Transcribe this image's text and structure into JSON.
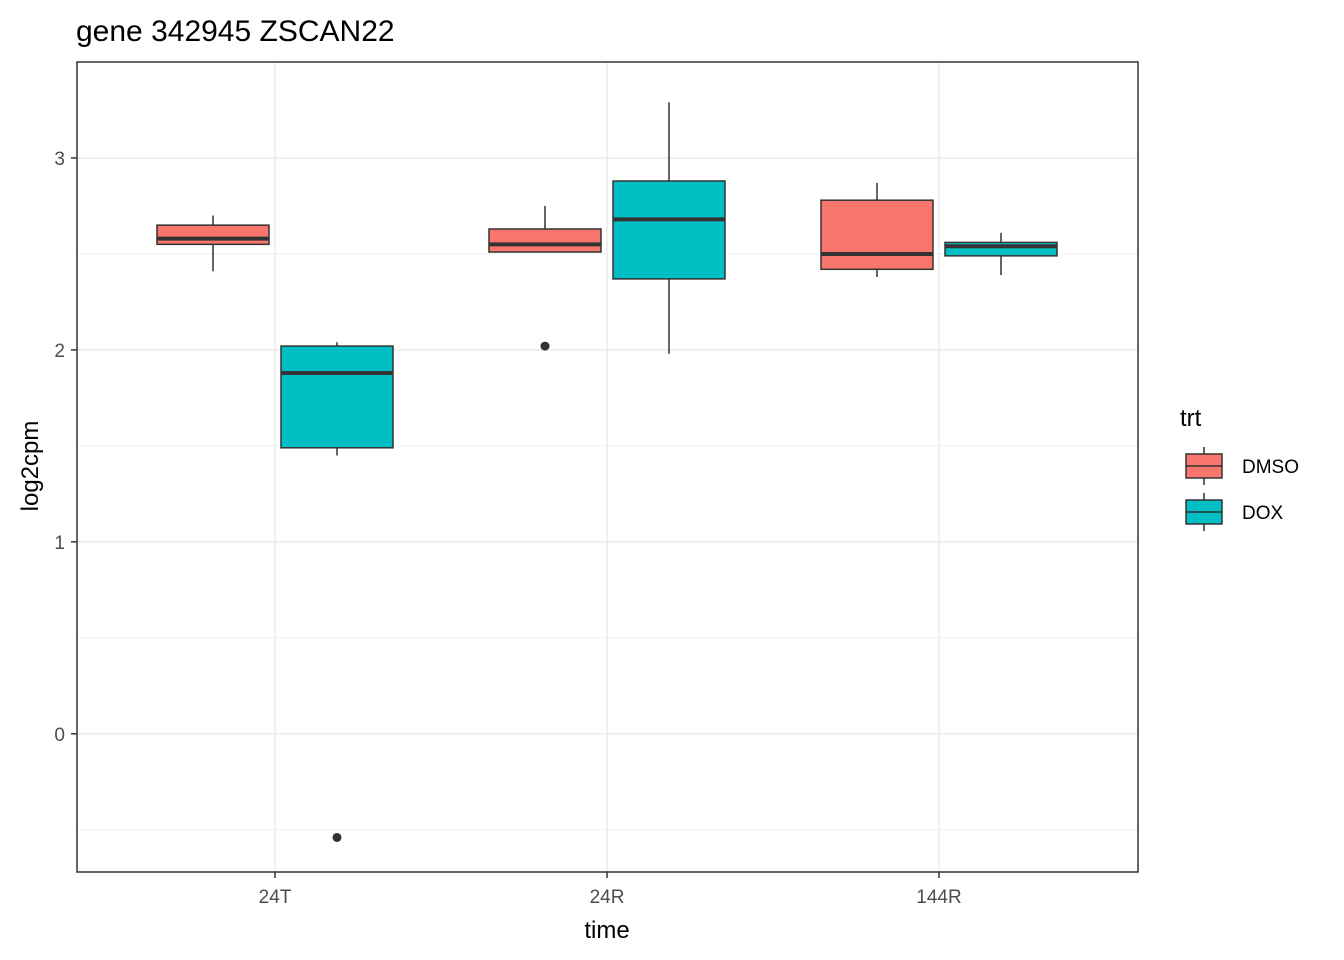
{
  "chart_data": {
    "type": "boxplot",
    "title": "gene 342945 ZSCAN22",
    "xlabel": "time",
    "ylabel": "log2cpm",
    "categories": [
      "24T",
      "24R",
      "144R"
    ],
    "y_ticks": [
      0,
      1,
      2,
      3
    ],
    "y_tick_labels": [
      "0",
      "1",
      "2",
      "3"
    ],
    "ylim": [
      -0.72,
      3.5
    ],
    "grid": true,
    "legend": {
      "title": "trt",
      "position": "right"
    },
    "series": [
      {
        "name": "DMSO",
        "color": "#F8766D",
        "boxes": [
          {
            "category": "24T",
            "whisker_low": 2.41,
            "q1": 2.55,
            "median": 2.58,
            "q3": 2.65,
            "whisker_high": 2.7,
            "outliers": []
          },
          {
            "category": "24R",
            "whisker_low": 2.51,
            "q1": 2.51,
            "median": 2.55,
            "q3": 2.63,
            "whisker_high": 2.75,
            "outliers": [
              2.02
            ]
          },
          {
            "category": "144R",
            "whisker_low": 2.38,
            "q1": 2.42,
            "median": 2.5,
            "q3": 2.78,
            "whisker_high": 2.87,
            "outliers": []
          }
        ]
      },
      {
        "name": "DOX",
        "color": "#00BFC4",
        "boxes": [
          {
            "category": "24T",
            "whisker_low": 1.45,
            "q1": 1.49,
            "median": 1.88,
            "q3": 2.02,
            "whisker_high": 2.04,
            "outliers": [
              -0.54
            ]
          },
          {
            "category": "24R",
            "whisker_low": 1.98,
            "q1": 2.37,
            "median": 2.68,
            "q3": 2.88,
            "whisker_high": 3.29,
            "outliers": []
          },
          {
            "category": "144R",
            "whisker_low": 2.39,
            "q1": 2.49,
            "median": 2.54,
            "q3": 2.56,
            "whisker_high": 2.61,
            "outliers": []
          }
        ]
      }
    ]
  }
}
